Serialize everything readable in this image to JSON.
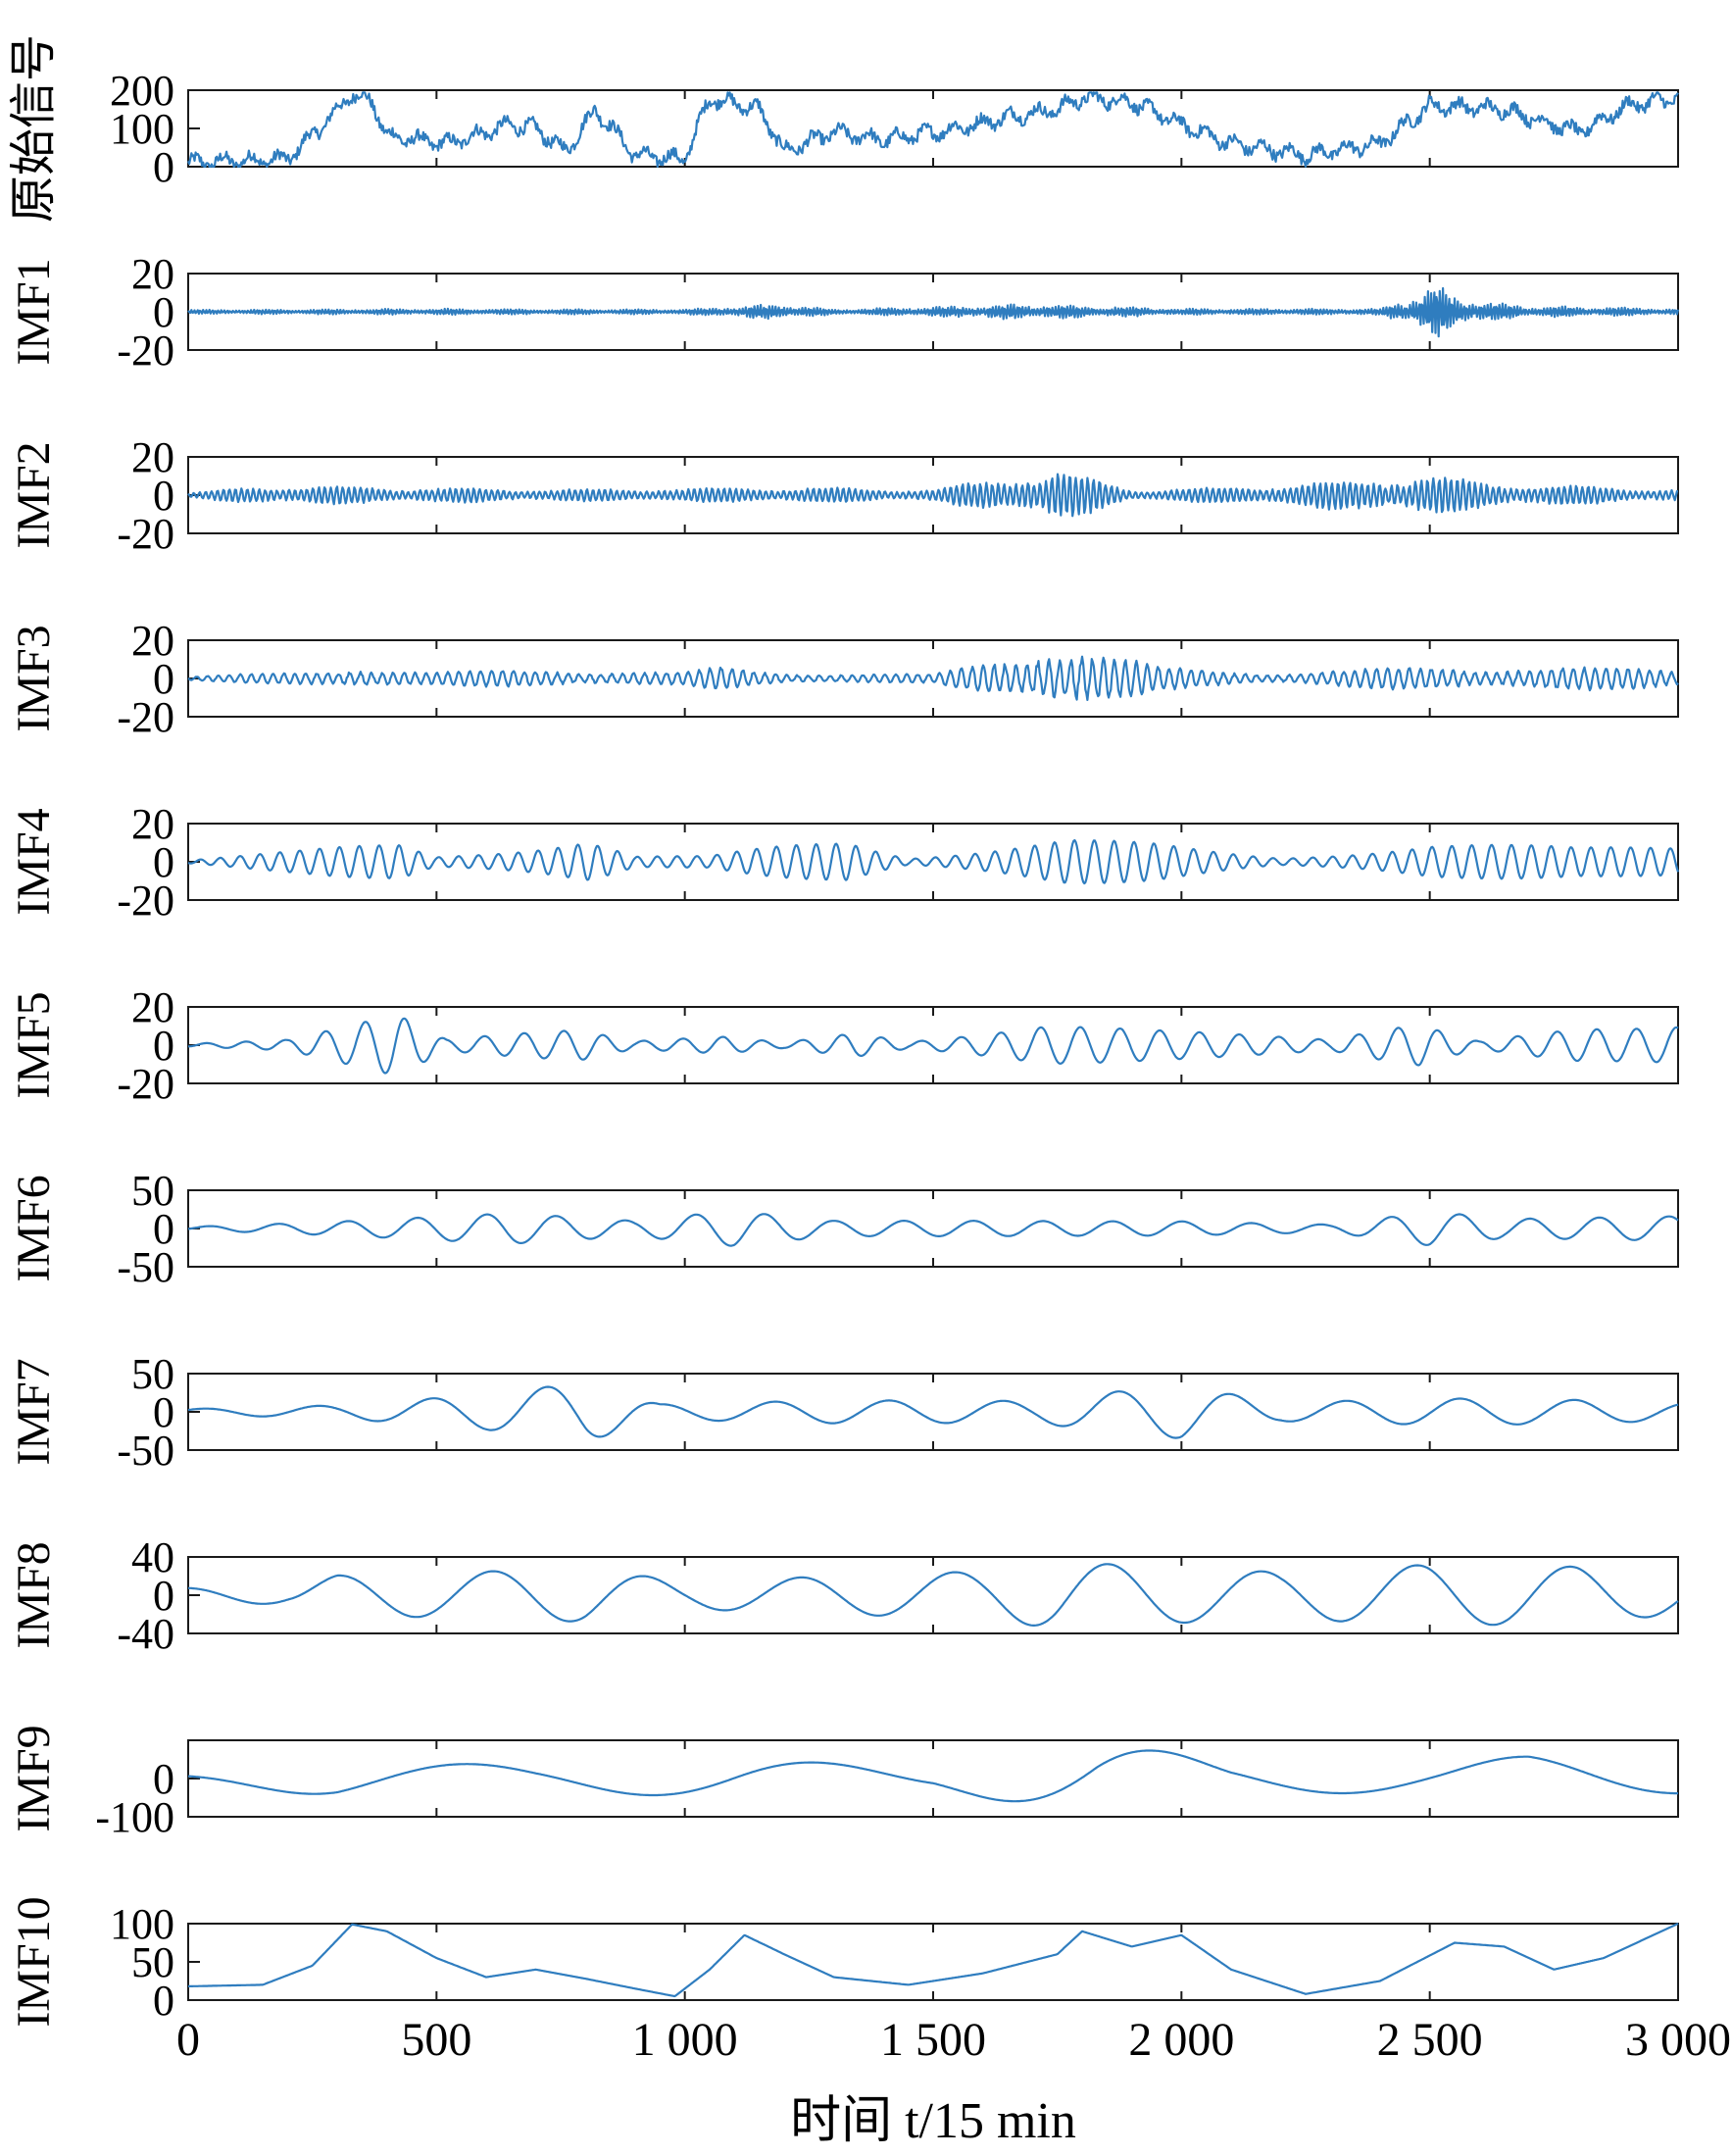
{
  "chart_data": {
    "type": "line",
    "title": "",
    "xlabel": "时间 t/15 min",
    "xlim": [
      0,
      3000
    ],
    "xticks": [
      0,
      500,
      1000,
      1500,
      2000,
      2500,
      3000
    ],
    "xtick_labels": [
      "0",
      "500",
      "1 000",
      "1 500",
      "2 000",
      "2 500",
      "3 000"
    ],
    "grid": false,
    "line_color": "#2f7dbf",
    "panels": [
      {
        "ylabel": "原始信号",
        "ylim": [
          0,
          200
        ],
        "yticks": [
          "200",
          "100",
          "0"
        ],
        "envelope": [
          [
            0,
            10
          ],
          [
            200,
            20
          ],
          [
            280,
            120
          ],
          [
            330,
            190
          ],
          [
            370,
            170
          ],
          [
            400,
            80
          ],
          [
            520,
            60
          ],
          [
            650,
            110
          ],
          [
            700,
            100
          ],
          [
            760,
            40
          ],
          [
            820,
            150
          ],
          [
            900,
            30
          ],
          [
            1000,
            20
          ],
          [
            1050,
            180
          ],
          [
            1150,
            150
          ],
          [
            1200,
            40
          ],
          [
            1300,
            90
          ],
          [
            1400,
            70
          ],
          [
            1550,
            100
          ],
          [
            1650,
            130
          ],
          [
            1750,
            150
          ],
          [
            1800,
            180
          ],
          [
            1900,
            170
          ],
          [
            2000,
            110
          ],
          [
            2100,
            60
          ],
          [
            2250,
            30
          ],
          [
            2400,
            60
          ],
          [
            2500,
            160
          ],
          [
            2650,
            150
          ],
          [
            2800,
            90
          ],
          [
            2900,
            160
          ],
          [
            3000,
            180
          ]
        ]
      },
      {
        "ylabel": "IMF1",
        "ylim": [
          -20,
          20
        ],
        "yticks": [
          "20",
          "0",
          "-20"
        ],
        "envelope": [
          [
            0,
            1
          ],
          [
            500,
            1.5
          ],
          [
            1000,
            1.2
          ],
          [
            1190,
            4
          ],
          [
            1300,
            1.2
          ],
          [
            1500,
            2.5
          ],
          [
            1700,
            4
          ],
          [
            2000,
            1.5
          ],
          [
            2400,
            1.5
          ],
          [
            2510,
            13
          ],
          [
            2600,
            5
          ],
          [
            2700,
            3
          ],
          [
            3000,
            1.5
          ]
        ]
      },
      {
        "ylabel": "IMF2",
        "ylim": [
          -20,
          20
        ],
        "yticks": [
          "20",
          "0",
          "-20"
        ],
        "envelope": [
          [
            0,
            1
          ],
          [
            150,
            5
          ],
          [
            400,
            4
          ],
          [
            800,
            3
          ],
          [
            1200,
            4
          ],
          [
            1500,
            3
          ],
          [
            1750,
            13
          ],
          [
            1900,
            3
          ],
          [
            2100,
            4
          ],
          [
            2500,
            10
          ],
          [
            2650,
            6
          ],
          [
            3000,
            3
          ]
        ]
      },
      {
        "ylabel": "IMF3",
        "ylim": [
          -20,
          20
        ],
        "yticks": [
          "20",
          "0",
          "-20"
        ],
        "envelope": [
          [
            0,
            1
          ],
          [
            200,
            3
          ],
          [
            350,
            6
          ],
          [
            500,
            3
          ],
          [
            700,
            5
          ],
          [
            1000,
            3
          ],
          [
            1070,
            6
          ],
          [
            1200,
            3
          ],
          [
            1500,
            2
          ],
          [
            1750,
            18
          ],
          [
            1950,
            6
          ],
          [
            2200,
            3
          ],
          [
            2500,
            6
          ],
          [
            2750,
            6
          ],
          [
            3000,
            5
          ]
        ]
      },
      {
        "ylabel": "IMF4",
        "ylim": [
          -20,
          20
        ],
        "yticks": [
          "20",
          "0",
          "-20"
        ],
        "envelope": [
          [
            0,
            1
          ],
          [
            230,
            6
          ],
          [
            430,
            12
          ],
          [
            500,
            4
          ],
          [
            800,
            14
          ],
          [
            900,
            3
          ],
          [
            1050,
            3
          ],
          [
            1330,
            16
          ],
          [
            1450,
            3
          ],
          [
            1770,
            12
          ],
          [
            1950,
            10
          ],
          [
            2200,
            3
          ],
          [
            2500,
            10
          ],
          [
            2800,
            8
          ],
          [
            3000,
            12
          ]
        ]
      },
      {
        "ylabel": "IMF5",
        "ylim": [
          -20,
          20
        ],
        "yticks": [
          "20",
          "0",
          "-20"
        ],
        "envelope": [
          [
            0,
            1
          ],
          [
            200,
            3
          ],
          [
            420,
            16
          ],
          [
            520,
            3
          ],
          [
            790,
            10
          ],
          [
            900,
            3
          ],
          [
            1080,
            8
          ],
          [
            1200,
            3
          ],
          [
            1340,
            12
          ],
          [
            1450,
            3
          ],
          [
            1730,
            12
          ],
          [
            1950,
            8
          ],
          [
            2300,
            3
          ],
          [
            2480,
            14
          ],
          [
            2600,
            3
          ],
          [
            2800,
            16
          ],
          [
            3000,
            18
          ]
        ]
      },
      {
        "ylabel": "IMF6",
        "ylim": [
          -50,
          50
        ],
        "yticks": [
          "50",
          "0",
          "-50"
        ],
        "envelope": [
          [
            0,
            3
          ],
          [
            300,
            10
          ],
          [
            650,
            20
          ],
          [
            900,
            10
          ],
          [
            1100,
            25
          ],
          [
            1300,
            12
          ],
          [
            1600,
            15
          ],
          [
            2000,
            18
          ],
          [
            2300,
            10
          ],
          [
            2500,
            40
          ],
          [
            2650,
            20
          ],
          [
            3000,
            20
          ]
        ]
      },
      {
        "ylabel": "IMF7",
        "ylim": [
          -50,
          50
        ],
        "yticks": [
          "50",
          "0",
          "-50"
        ],
        "envelope": [
          [
            0,
            5
          ],
          [
            300,
            10
          ],
          [
            600,
            25
          ],
          [
            800,
            40
          ],
          [
            950,
            10
          ],
          [
            1300,
            15
          ],
          [
            1700,
            15
          ],
          [
            2000,
            40
          ],
          [
            2200,
            15
          ],
          [
            2550,
            25
          ],
          [
            2800,
            25
          ],
          [
            3000,
            20
          ]
        ]
      },
      {
        "ylabel": "IMF8",
        "ylim": [
          -40,
          40
        ],
        "yticks": [
          "40",
          "0",
          "-40"
        ],
        "envelope": [
          [
            0,
            10
          ],
          [
            200,
            12
          ],
          [
            300,
            25
          ],
          [
            800,
            30
          ],
          [
            1000,
            15
          ],
          [
            1300,
            20
          ],
          [
            1600,
            25
          ],
          [
            1750,
            35
          ],
          [
            2200,
            25
          ],
          [
            2500,
            35
          ],
          [
            2800,
            35
          ],
          [
            3000,
            25
          ]
        ]
      },
      {
        "ylabel": "IMF9",
        "ylim": [
          -100,
          100
        ],
        "yticks": [
          "0",
          "-100"
        ],
        "envelope": [
          [
            0,
            20
          ],
          [
            300,
            60
          ],
          [
            700,
            40
          ],
          [
            1100,
            60
          ],
          [
            1500,
            30
          ],
          [
            1830,
            110
          ],
          [
            2100,
            40
          ],
          [
            2500,
            40
          ],
          [
            2700,
            60
          ],
          [
            3000,
            40
          ]
        ]
      },
      {
        "ylabel": "IMF10",
        "ylim": [
          0,
          100
        ],
        "yticks": [
          "100",
          "50",
          "0"
        ],
        "trend": [
          [
            0,
            18
          ],
          [
            150,
            20
          ],
          [
            250,
            45
          ],
          [
            330,
            99
          ],
          [
            400,
            90
          ],
          [
            500,
            55
          ],
          [
            600,
            30
          ],
          [
            700,
            40
          ],
          [
            800,
            28
          ],
          [
            900,
            15
          ],
          [
            980,
            5
          ],
          [
            1050,
            40
          ],
          [
            1120,
            85
          ],
          [
            1200,
            60
          ],
          [
            1300,
            30
          ],
          [
            1450,
            20
          ],
          [
            1600,
            35
          ],
          [
            1750,
            60
          ],
          [
            1800,
            90
          ],
          [
            1900,
            70
          ],
          [
            2000,
            85
          ],
          [
            2100,
            40
          ],
          [
            2250,
            8
          ],
          [
            2400,
            25
          ],
          [
            2550,
            75
          ],
          [
            2650,
            70
          ],
          [
            2750,
            40
          ],
          [
            2850,
            55
          ],
          [
            3000,
            100
          ]
        ]
      }
    ]
  }
}
